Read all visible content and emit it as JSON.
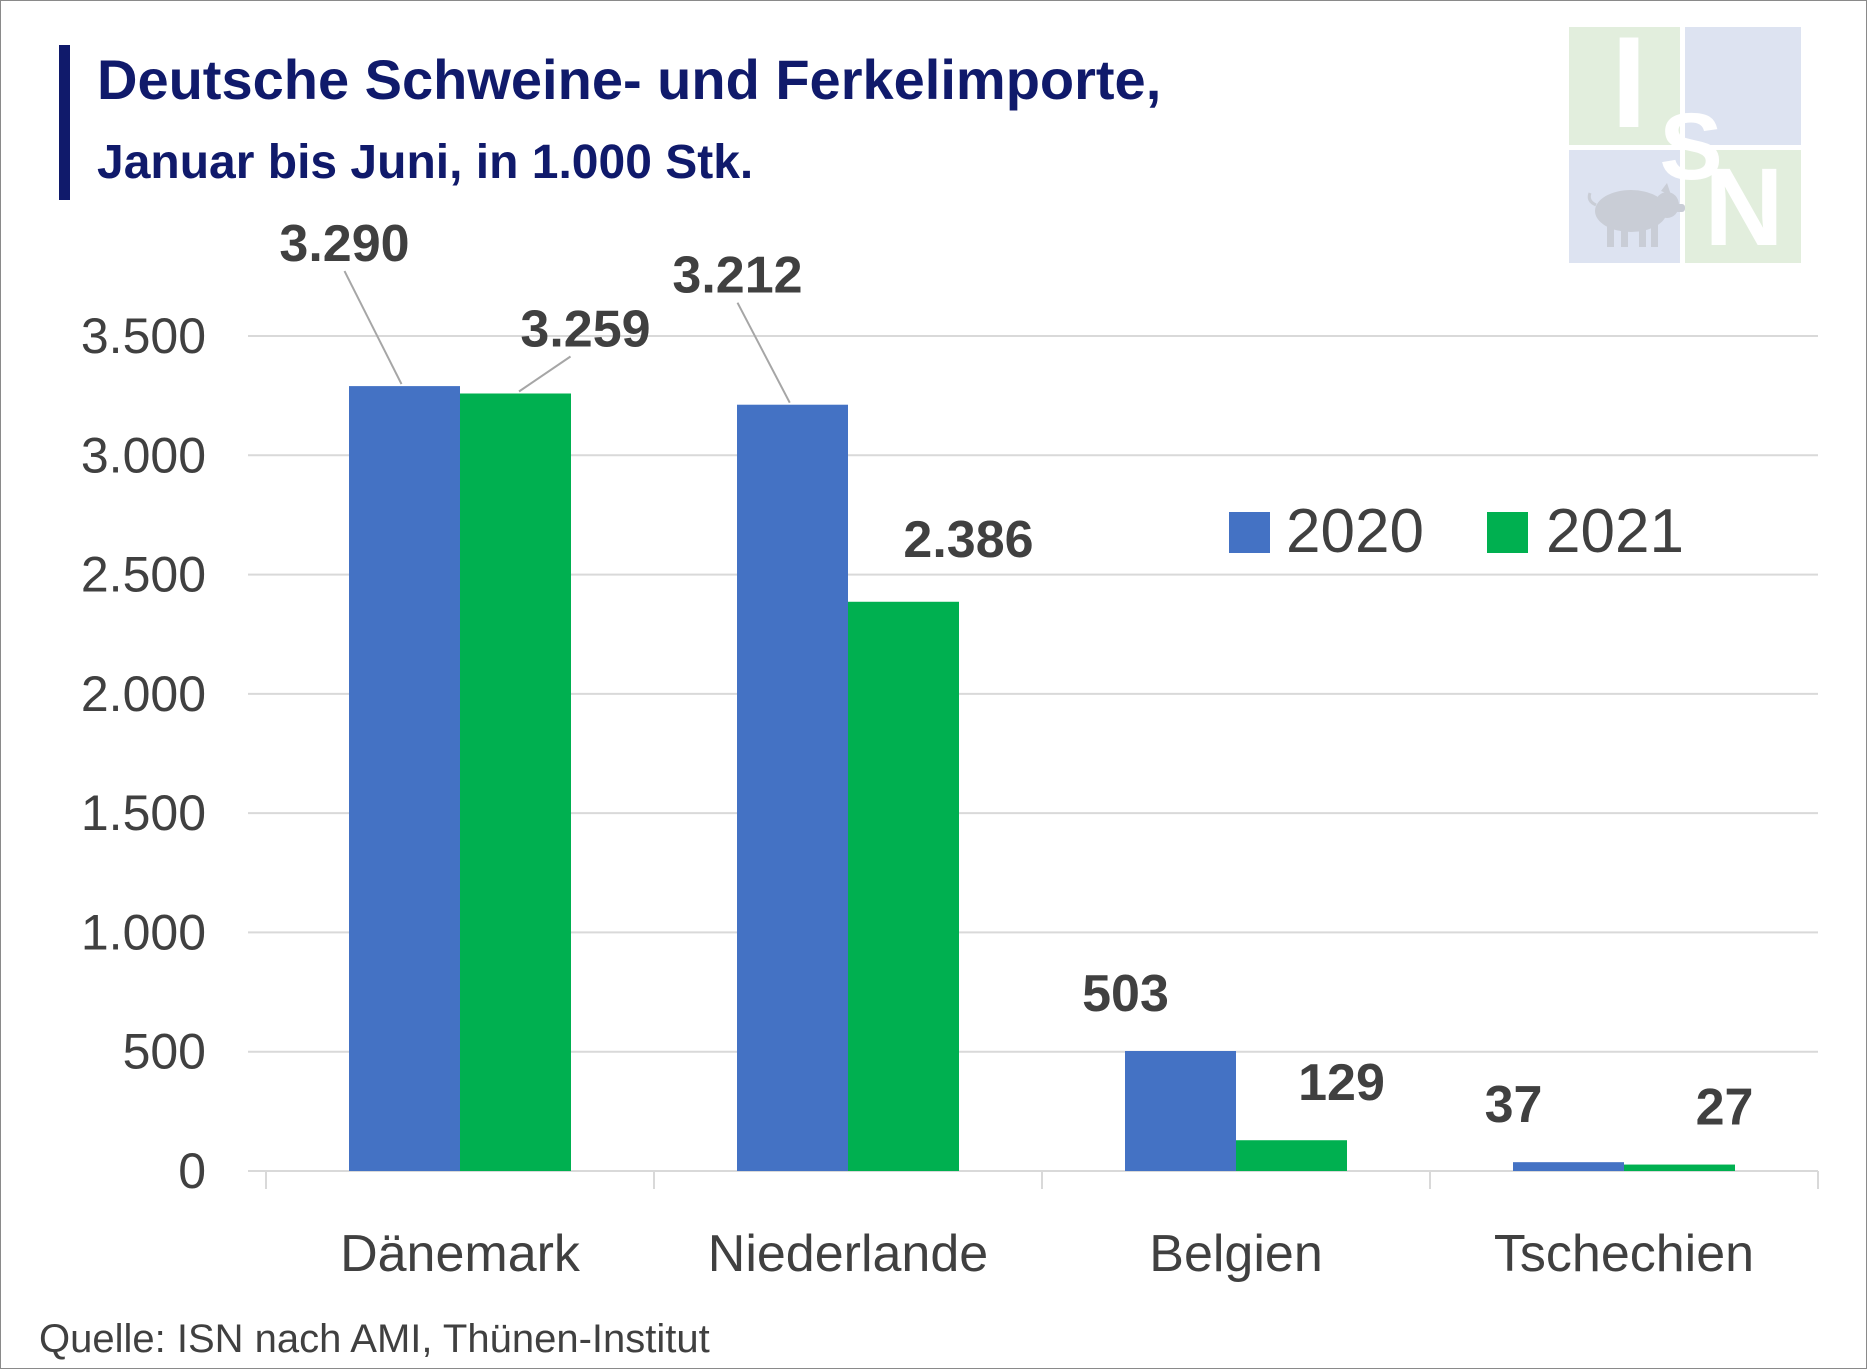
{
  "title": "Deutsche Schweine- und Ferkelimporte,",
  "subtitle": "Januar bis Juni, in 1.000 Stk.",
  "source": "Quelle: ISN nach AMI, Thünen-Institut",
  "logo": {
    "icon": "isn-logo-icon",
    "letters": [
      "I",
      "S",
      "N"
    ],
    "colors": {
      "green": "#e2eedd",
      "blue": "#dde3f1"
    }
  },
  "colors": {
    "2020": "#4472c4",
    "2021": "#00b050",
    "title": "#101a6b"
  },
  "chart_data": {
    "type": "bar",
    "categories": [
      "Dänemark",
      "Niederlande",
      "Belgien",
      "Tschechien"
    ],
    "series": [
      {
        "name": "2020",
        "values": [
          3290,
          3212,
          503,
          37
        ],
        "labels": [
          "3.290",
          "3.212",
          "503",
          "37"
        ]
      },
      {
        "name": "2021",
        "values": [
          3259,
          2386,
          129,
          27
        ],
        "labels": [
          "3.259",
          "2.386",
          "129",
          "27"
        ]
      }
    ],
    "ylim": [
      0,
      3500
    ],
    "yticks": [
      0,
      500,
      1000,
      1500,
      2000,
      2500,
      3000,
      3500
    ],
    "ytick_labels": [
      "0",
      "500",
      "1.000",
      "1.500",
      "2.000",
      "2.500",
      "3.000",
      "3.500"
    ],
    "grid": true,
    "legend_position": "right"
  }
}
